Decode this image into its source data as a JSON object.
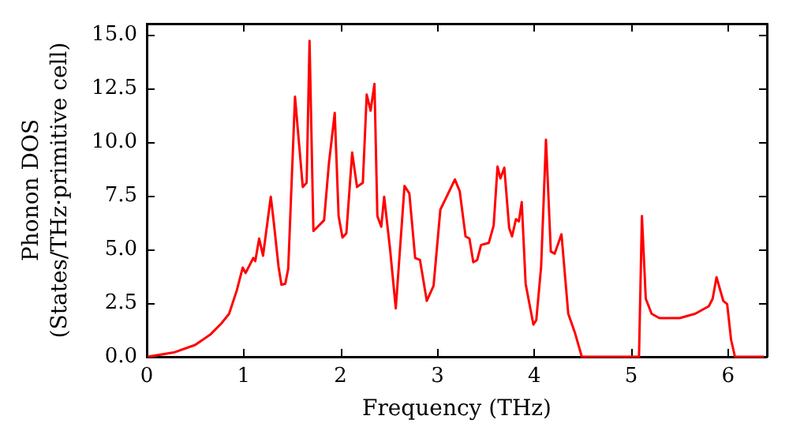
{
  "chart_data": {
    "type": "line",
    "xlabel": "Frequency (THz)",
    "ylabel": "Phonon DOS\n(States/THz·primitive cell)",
    "xlim": [
      0,
      6.4
    ],
    "ylim": [
      0,
      15.5
    ],
    "xticks": [
      0,
      1,
      2,
      3,
      4,
      5,
      6
    ],
    "yticks": [
      {
        "value": 0,
        "label": "0.0"
      },
      {
        "value": 2.5,
        "label": "2.5"
      },
      {
        "value": 5,
        "label": "5.0"
      },
      {
        "value": 7.5,
        "label": "7.5"
      },
      {
        "value": 10,
        "label": "10.0"
      },
      {
        "value": 12.5,
        "label": "12.5"
      },
      {
        "value": 15,
        "label": "15.0"
      }
    ],
    "grid": false,
    "marker": "none",
    "line_style": "solid",
    "series": [
      {
        "color": "#ff0000",
        "x": [
          0.01,
          0.28,
          0.5,
          0.66,
          0.77,
          0.85,
          0.93,
          0.99,
          1.02,
          1.1,
          1.12,
          1.16,
          1.2,
          1.28,
          1.31,
          1.36,
          1.39,
          1.43,
          1.46,
          1.53,
          1.61,
          1.65,
          1.68,
          1.72,
          1.83,
          1.88,
          1.94,
          1.98,
          2.02,
          2.06,
          2.12,
          2.17,
          2.23,
          2.27,
          2.31,
          2.35,
          2.38,
          2.42,
          2.45,
          2.51,
          2.57,
          2.66,
          2.71,
          2.77,
          2.82,
          2.89,
          2.96,
          3.03,
          3.1,
          3.18,
          3.23,
          3.29,
          3.33,
          3.37,
          3.41,
          3.45,
          3.53,
          3.58,
          3.62,
          3.65,
          3.69,
          3.74,
          3.77,
          3.81,
          3.84,
          3.87,
          3.91,
          3.99,
          4.02,
          4.07,
          4.12,
          4.17,
          4.21,
          4.28,
          4.35,
          4.42,
          4.49,
          5.08,
          5.11,
          5.15,
          5.21,
          5.29,
          5.5,
          5.66,
          5.8,
          5.84,
          5.88,
          5.95,
          5.99,
          6.03,
          6.07,
          6.37
        ],
        "values": [
          0,
          0.2,
          0.55,
          1.05,
          1.55,
          2.0,
          3.1,
          4.15,
          3.9,
          4.6,
          4.45,
          5.5,
          4.7,
          7.45,
          6.3,
          4.2,
          3.35,
          3.4,
          4.1,
          12.1,
          7.9,
          8.1,
          14.7,
          5.85,
          6.35,
          9.0,
          11.35,
          6.55,
          5.55,
          5.75,
          9.5,
          7.9,
          8.1,
          12.2,
          11.45,
          12.7,
          6.55,
          6.05,
          7.45,
          5.05,
          2.25,
          7.95,
          7.6,
          4.6,
          4.5,
          2.6,
          3.3,
          6.85,
          7.5,
          8.25,
          7.7,
          5.6,
          5.5,
          4.4,
          4.5,
          5.2,
          5.3,
          6.1,
          8.85,
          8.3,
          8.8,
          6.0,
          5.6,
          6.4,
          6.3,
          7.2,
          3.4,
          1.5,
          1.7,
          4.2,
          10.1,
          4.9,
          4.8,
          5.7,
          2.0,
          1.1,
          0,
          0,
          6.55,
          2.7,
          2.0,
          1.8,
          1.8,
          2.0,
          2.35,
          2.7,
          3.7,
          2.6,
          2.45,
          0.8,
          0,
          0
        ]
      }
    ]
  }
}
